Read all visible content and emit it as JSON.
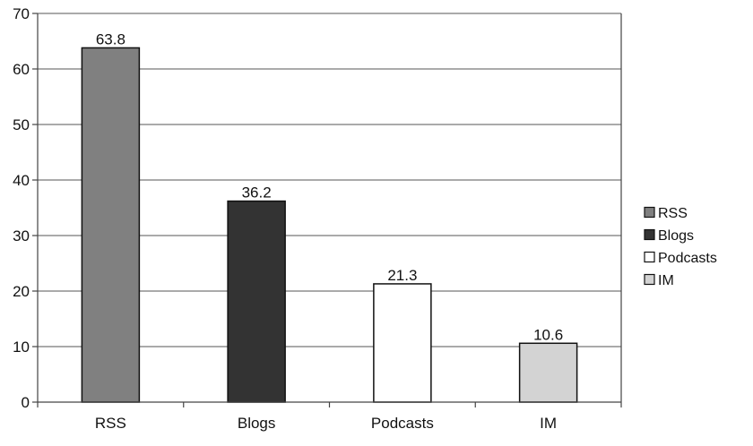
{
  "chart_data": {
    "type": "bar",
    "title": "",
    "xlabel": "",
    "ylabel": "",
    "categories": [
      "RSS",
      "Blogs",
      "Podcasts",
      "IM"
    ],
    "values": [
      63.8,
      36.2,
      21.3,
      10.6
    ],
    "data_labels": [
      "63.8",
      "36.2",
      "21.3",
      "10.6"
    ],
    "colors": [
      "#808080",
      "#333333",
      "#ffffff",
      "#d3d3d3"
    ],
    "ylim": [
      0,
      70
    ],
    "yticks": [
      0,
      10,
      20,
      30,
      40,
      50,
      60,
      70
    ],
    "ytick_labels": [
      "0",
      "10",
      "20",
      "30",
      "40",
      "50",
      "60",
      "70"
    ],
    "grid": true,
    "legend": {
      "placement": "right",
      "entries": [
        "RSS",
        "Blogs",
        "Podcasts",
        "IM"
      ]
    }
  }
}
